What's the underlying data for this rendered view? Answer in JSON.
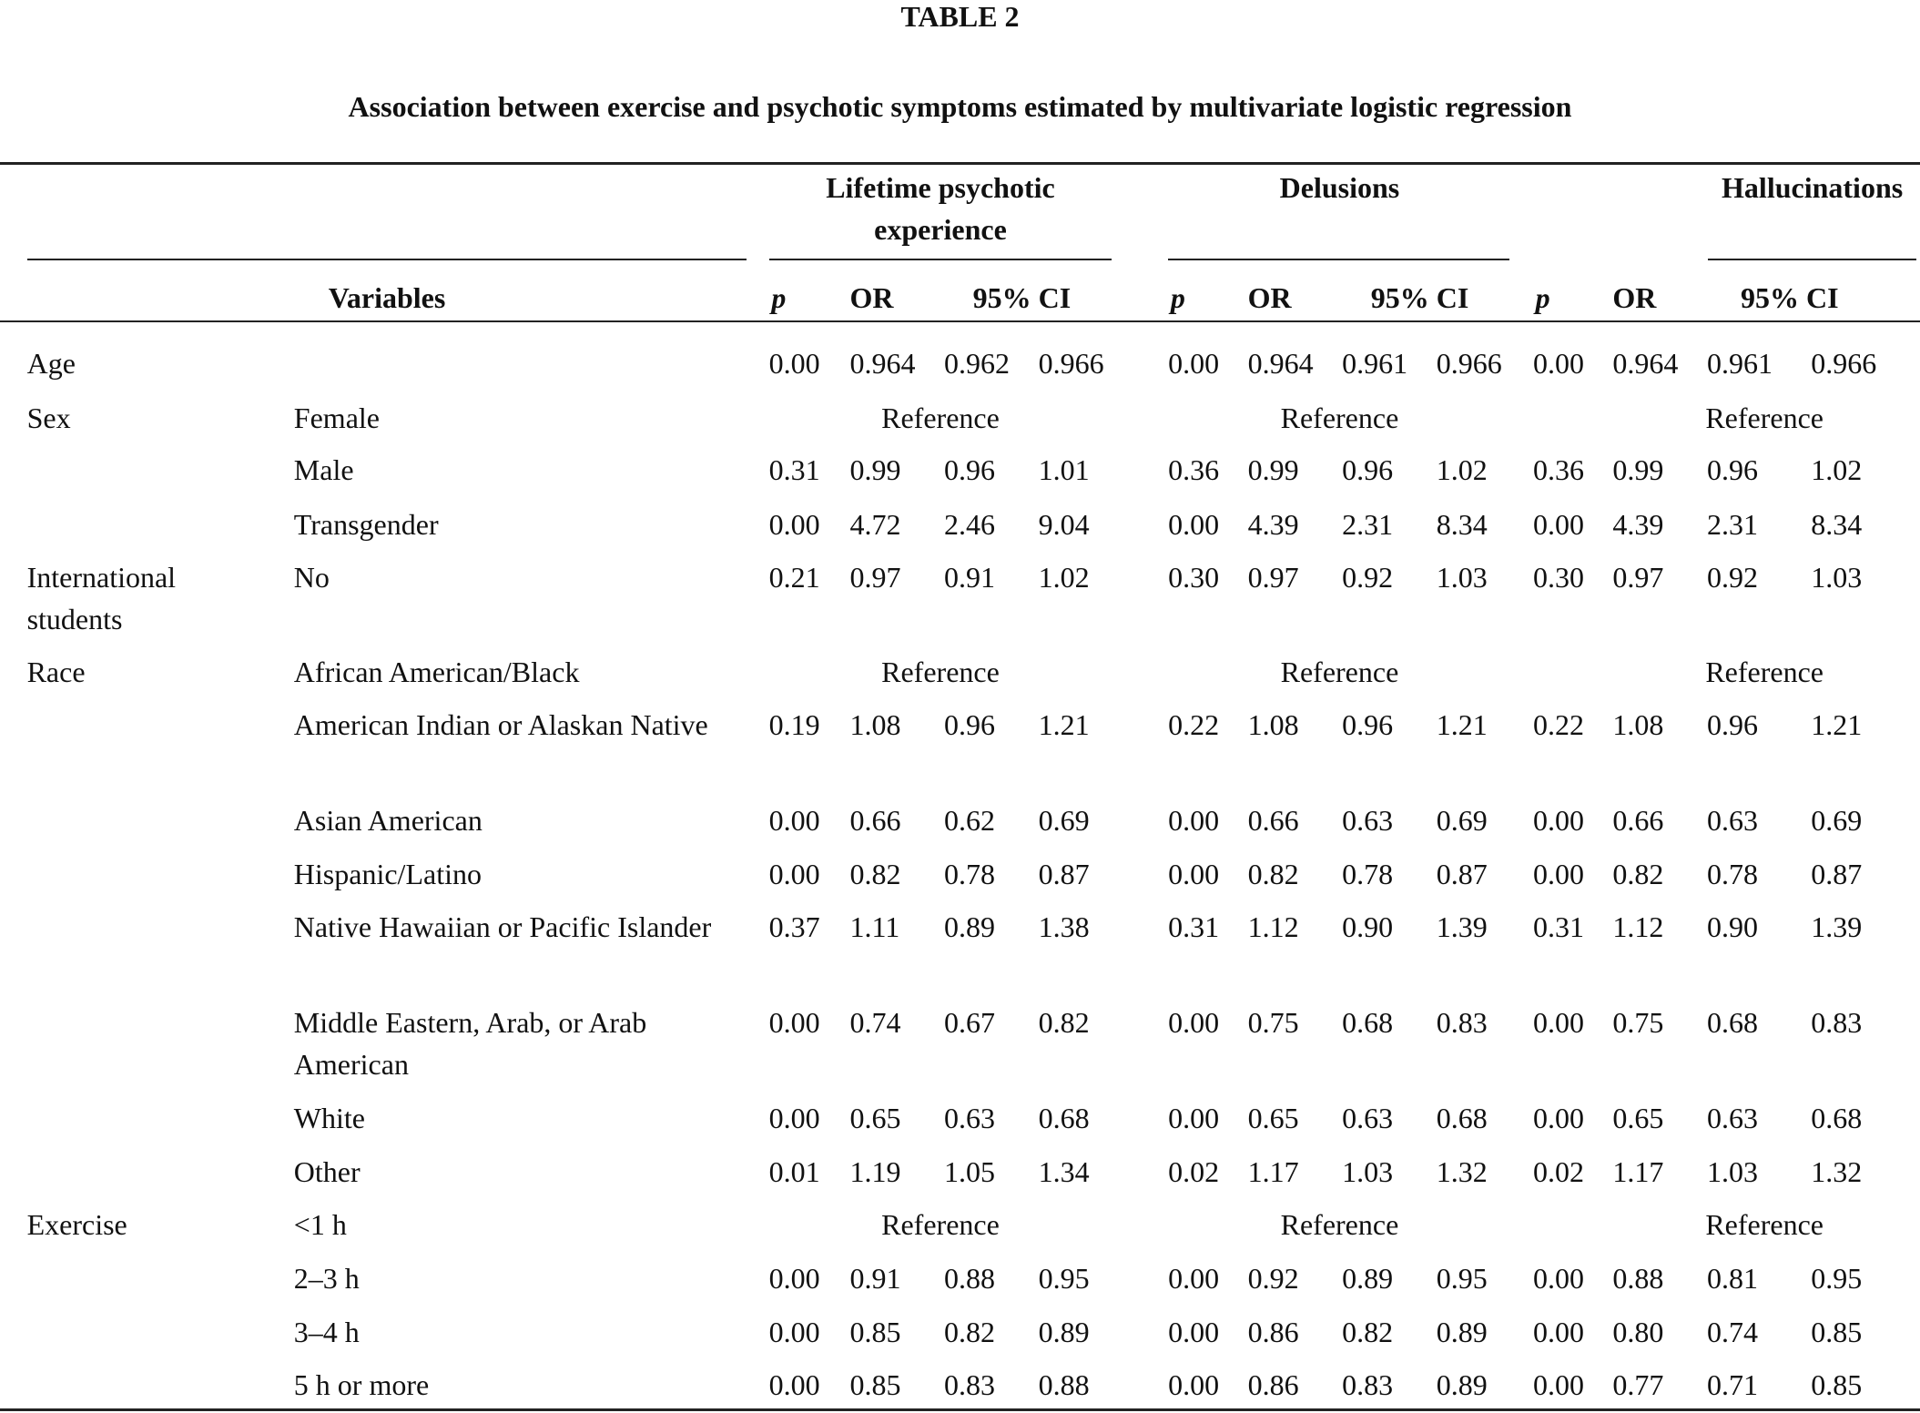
{
  "title": "TABLE 2",
  "subtitle": "Association between exercise and psychotic symptoms estimated by multivariate logistic regression",
  "table": {
    "groups": [
      "Lifetime psychotic experience",
      "Delusions",
      "Hallucinations"
    ],
    "variables_header": "Variables",
    "column_headers": [
      "p",
      "OR",
      "95% CI"
    ],
    "rows": [
      {
        "variable": "Age",
        "cells": [
          [
            "0.00",
            "0.964",
            "0.962",
            "0.966"
          ],
          [
            "0.00",
            "0.964",
            "0.961",
            "0.966"
          ],
          [
            "0.00",
            "0.964",
            "0.961",
            "0.966"
          ]
        ]
      },
      {
        "variable": "Sex",
        "level": "Female",
        "cells": [
          "Reference",
          "Reference",
          "Reference"
        ]
      },
      {
        "level": "Male",
        "cells": [
          [
            "0.31",
            "0.99",
            "0.96",
            "1.01"
          ],
          [
            "0.36",
            "0.99",
            "0.96",
            "1.02"
          ],
          [
            "0.36",
            "0.99",
            "0.96",
            "1.02"
          ]
        ]
      },
      {
        "level": "Transgender",
        "cells": [
          [
            "0.00",
            "4.72",
            "2.46",
            "9.04"
          ],
          [
            "0.00",
            "4.39",
            "2.31",
            "8.34"
          ],
          [
            "0.00",
            "4.39",
            "2.31",
            "8.34"
          ]
        ]
      },
      {
        "variable": "International students",
        "level": "No",
        "cells": [
          [
            "0.21",
            "0.97",
            "0.91",
            "1.02"
          ],
          [
            "0.30",
            "0.97",
            "0.92",
            "1.03"
          ],
          [
            "0.30",
            "0.97",
            "0.92",
            "1.03"
          ]
        ]
      },
      {
        "variable": "Race",
        "level": "African American/Black",
        "cells": [
          "Reference",
          "Reference",
          "Reference"
        ]
      },
      {
        "level": "American Indian or Alaskan Native",
        "cells": [
          [
            "0.19",
            "1.08",
            "0.96",
            "1.21"
          ],
          [
            "0.22",
            "1.08",
            "0.96",
            "1.21"
          ],
          [
            "0.22",
            "1.08",
            "0.96",
            "1.21"
          ]
        ]
      },
      {
        "level": "Asian American",
        "cells": [
          [
            "0.00",
            "0.66",
            "0.62",
            "0.69"
          ],
          [
            "0.00",
            "0.66",
            "0.63",
            "0.69"
          ],
          [
            "0.00",
            "0.66",
            "0.63",
            "0.69"
          ]
        ]
      },
      {
        "level": "Hispanic/Latino",
        "cells": [
          [
            "0.00",
            "0.82",
            "0.78",
            "0.87"
          ],
          [
            "0.00",
            "0.82",
            "0.78",
            "0.87"
          ],
          [
            "0.00",
            "0.82",
            "0.78",
            "0.87"
          ]
        ]
      },
      {
        "level": "Native Hawaiian or Pacific Islander",
        "cells": [
          [
            "0.37",
            "1.11",
            "0.89",
            "1.38"
          ],
          [
            "0.31",
            "1.12",
            "0.90",
            "1.39"
          ],
          [
            "0.31",
            "1.12",
            "0.90",
            "1.39"
          ]
        ]
      },
      {
        "level": "Middle Eastern, Arab, or Arab American",
        "cells": [
          [
            "0.00",
            "0.74",
            "0.67",
            "0.82"
          ],
          [
            "0.00",
            "0.75",
            "0.68",
            "0.83"
          ],
          [
            "0.00",
            "0.75",
            "0.68",
            "0.83"
          ]
        ]
      },
      {
        "level": "White",
        "cells": [
          [
            "0.00",
            "0.65",
            "0.63",
            "0.68"
          ],
          [
            "0.00",
            "0.65",
            "0.63",
            "0.68"
          ],
          [
            "0.00",
            "0.65",
            "0.63",
            "0.68"
          ]
        ]
      },
      {
        "level": "Other",
        "cells": [
          [
            "0.01",
            "1.19",
            "1.05",
            "1.34"
          ],
          [
            "0.02",
            "1.17",
            "1.03",
            "1.32"
          ],
          [
            "0.02",
            "1.17",
            "1.03",
            "1.32"
          ]
        ]
      },
      {
        "variable": "Exercise",
        "level": "<1 h",
        "cells": [
          "Reference",
          "Reference",
          "Reference"
        ]
      },
      {
        "level": "2–3 h",
        "cells": [
          [
            "0.00",
            "0.91",
            "0.88",
            "0.95"
          ],
          [
            "0.00",
            "0.92",
            "0.89",
            "0.95"
          ],
          [
            "0.00",
            "0.88",
            "0.81",
            "0.95"
          ]
        ]
      },
      {
        "level": "3–4 h",
        "cells": [
          [
            "0.00",
            "0.85",
            "0.82",
            "0.89"
          ],
          [
            "0.00",
            "0.86",
            "0.82",
            "0.89"
          ],
          [
            "0.00",
            "0.80",
            "0.74",
            "0.85"
          ]
        ]
      },
      {
        "level": "5 h or more",
        "cells": [
          [
            "0.00",
            "0.85",
            "0.83",
            "0.88"
          ],
          [
            "0.00",
            "0.86",
            "0.83",
            "0.89"
          ],
          [
            "0.00",
            "0.77",
            "0.71",
            "0.85"
          ]
        ]
      }
    ]
  }
}
